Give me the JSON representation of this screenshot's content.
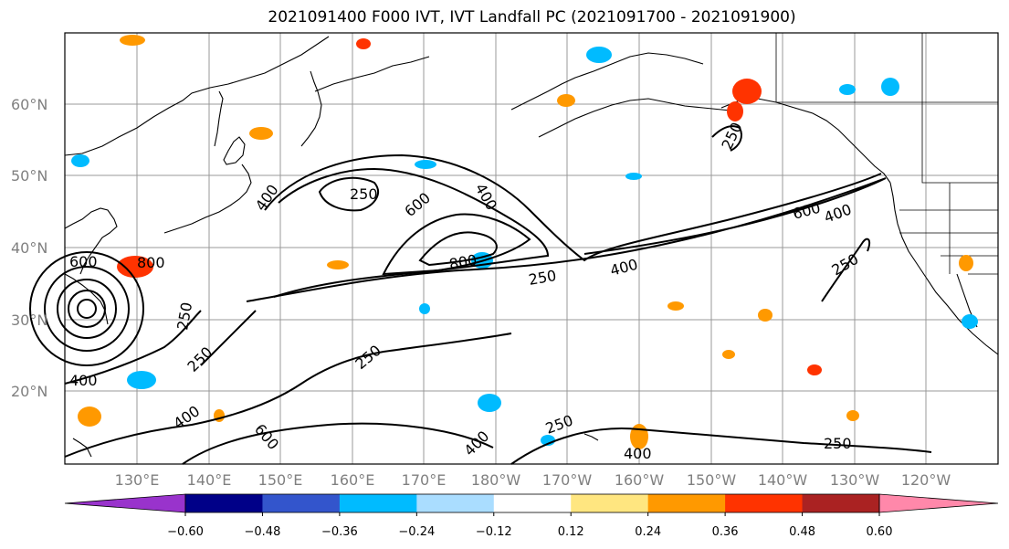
{
  "title": "2021091400 F000 IVT, IVT Landfall PC (2021091700 - 2021091900)",
  "lat_labels": [
    "60°N",
    "50°N",
    "40°N",
    "30°N",
    "20°N"
  ],
  "lon_labels": [
    "130°E",
    "140°E",
    "150°E",
    "160°E",
    "170°E",
    "180°W",
    "170°W",
    "160°W",
    "150°W",
    "140°W",
    "130°W",
    "120°W"
  ],
  "colorbar": {
    "tick_labels": [
      "−0.60",
      "−0.48",
      "−0.36",
      "−0.24",
      "−0.12",
      "0.12",
      "0.24",
      "0.36",
      "0.48",
      "0.60"
    ],
    "colors": [
      "#9933cc",
      "#000088",
      "#3355cc",
      "#00bbff",
      "#aaddff",
      "#ffffff",
      "#ffe680",
      "#ff9900",
      "#ff3300",
      "#aa2222",
      "#ff88aa"
    ]
  },
  "contour_labels": [
    "250",
    "400",
    "600",
    "800",
    "250",
    "400",
    "600",
    "800",
    "250",
    "400",
    "250",
    "400",
    "600",
    "250",
    "400",
    "250",
    "600",
    "400",
    "250",
    "250",
    "400",
    "250",
    "400"
  ],
  "colors": {
    "positive_light": "#ffe680",
    "positive_mid": "#ff9900",
    "positive_strong": "#ff3300",
    "negative_light": "#aaddff",
    "negative_mid": "#00bbff",
    "grid": "#999999",
    "contour": "#000000"
  }
}
